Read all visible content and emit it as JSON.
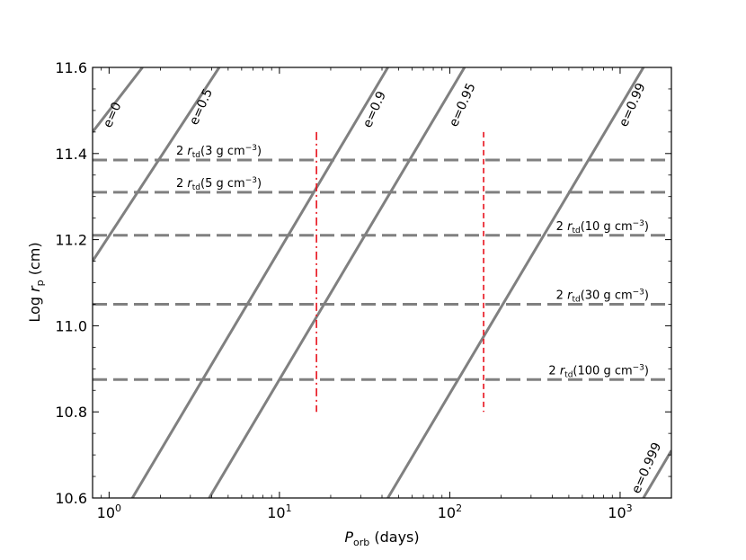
{
  "chart_data": {
    "type": "line",
    "title": "",
    "xlabel": "P_orb (days)",
    "ylabel": "Log r_p (cm)",
    "x_scale": "log",
    "xlim": [
      0.8,
      2000
    ],
    "ylim": [
      10.6,
      11.6
    ],
    "grid": false,
    "x_ticks": [
      {
        "value": 1,
        "base": "10",
        "exp": "0"
      },
      {
        "value": 10,
        "base": "10",
        "exp": "1"
      },
      {
        "value": 100,
        "base": "10",
        "exp": "2"
      },
      {
        "value": 1000,
        "base": "10",
        "exp": "3"
      }
    ],
    "y_ticks": [
      {
        "value": 10.6,
        "label": "10.6"
      },
      {
        "value": 10.8,
        "label": "10.8"
      },
      {
        "value": 11.0,
        "label": "11.0"
      },
      {
        "value": 11.2,
        "label": "11.2"
      },
      {
        "value": 11.4,
        "label": "11.4"
      },
      {
        "value": 11.6,
        "label": "11.6"
      }
    ],
    "series": [
      {
        "name": "e=0",
        "slope_log_rp_per_log_P": 0.6667,
        "points": [
          [
            0.8,
            11.45
          ],
          [
            1.57,
            11.6
          ]
        ]
      },
      {
        "name": "e=0.5",
        "slope_log_rp_per_log_P": 0.6667,
        "points": [
          [
            0.8,
            11.15
          ],
          [
            4.43,
            11.6
          ]
        ]
      },
      {
        "name": "e=0.9",
        "slope_log_rp_per_log_P": 0.6667,
        "points": [
          [
            1.37,
            10.6
          ],
          [
            43.3,
            11.6
          ]
        ]
      },
      {
        "name": "e=0.95",
        "slope_log_rp_per_log_P": 0.6667,
        "points": [
          [
            3.87,
            10.6
          ],
          [
            122,
            11.6
          ]
        ]
      },
      {
        "name": "e=0.99",
        "slope_log_rp_per_log_P": 0.6667,
        "points": [
          [
            43.3,
            10.6
          ],
          [
            1370,
            11.6
          ]
        ]
      },
      {
        "name": "e=0.999",
        "slope_log_rp_per_log_P": 0.6667,
        "points": [
          [
            1370,
            10.6
          ],
          [
            2000,
            10.71
          ]
        ]
      }
    ],
    "horizontal_lines": [
      {
        "y": 11.385,
        "label_pre": "2 ",
        "label_r": "r",
        "label_sub": "td",
        "label_mid": "(3 g cm",
        "label_sup": "−3",
        "label_post": ")",
        "label_side": "left"
      },
      {
        "y": 11.31,
        "label_pre": "2 ",
        "label_r": "r",
        "label_sub": "td",
        "label_mid": "(5 g cm",
        "label_sup": "−3",
        "label_post": ")",
        "label_side": "left"
      },
      {
        "y": 11.21,
        "label_pre": "2 ",
        "label_r": "r",
        "label_sub": "td",
        "label_mid": "(10 g cm",
        "label_sup": "−3",
        "label_post": ")",
        "label_side": "right"
      },
      {
        "y": 11.05,
        "label_pre": "2 ",
        "label_r": "r",
        "label_sub": "td",
        "label_mid": "(30 g cm",
        "label_sup": "−3",
        "label_post": ")",
        "label_side": "right"
      },
      {
        "y": 10.875,
        "label_pre": "2 ",
        "label_r": "r",
        "label_sub": "td",
        "label_mid": "(100 g cm",
        "label_sup": "−3",
        "label_post": ")",
        "label_side": "right"
      }
    ],
    "vertical_lines": [
      {
        "x": 16.5,
        "y_range": [
          10.8,
          11.45
        ],
        "style": "dashdot",
        "color": "#e8101a"
      },
      {
        "x": 158,
        "y_range": [
          10.8,
          11.45
        ],
        "style": "dashed",
        "color": "#e8101a"
      }
    ],
    "colors": {
      "curve": "#808080",
      "hline": "#808080",
      "vline": "#e8101a",
      "axes": "#000000"
    }
  }
}
